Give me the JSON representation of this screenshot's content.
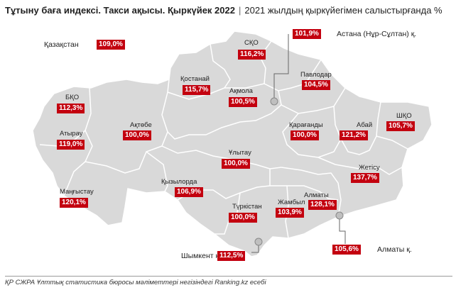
{
  "header": {
    "title": "Тұтыну баға индексі. Такси ақысы. Қыркүйек 2022",
    "subtitle": "2021 жылдың қыркүйегімен салыстырғанда %"
  },
  "national": {
    "label": "Қазақстан",
    "value": "109,0%"
  },
  "regions": [
    {
      "label": "СҚО",
      "value": "116,2%"
    },
    {
      "label": "Қостанай",
      "value": "115,7%"
    },
    {
      "label": "Ақмола",
      "value": "100,5%"
    },
    {
      "label": "Павлодар",
      "value": "104,5%"
    },
    {
      "label": "БҚО",
      "value": "112,3%"
    },
    {
      "label": "Ақтөбе",
      "value": "100,0%"
    },
    {
      "label": "Қарағанды",
      "value": "100,0%"
    },
    {
      "label": "Абай",
      "value": "121,2%"
    },
    {
      "label": "ШҚО",
      "value": "105,7%"
    },
    {
      "label": "Атырау",
      "value": "119,0%"
    },
    {
      "label": "Ұлытау",
      "value": "100,0%"
    },
    {
      "label": "Жетісу",
      "value": "137,7%"
    },
    {
      "label": "Маңғыстау",
      "value": "120,1%"
    },
    {
      "label": "Қызылорда",
      "value": "106,9%"
    },
    {
      "label": "Алматы",
      "value": "128,1%"
    },
    {
      "label": "Түркістан",
      "value": "100,0%"
    },
    {
      "label": "Жамбыл",
      "value": "103,9%"
    }
  ],
  "cities": [
    {
      "label": "Астана (Нұр-Сұлтан) қ.",
      "value": "101,9%"
    },
    {
      "label": "Шымкент қ.",
      "value": "112,5%"
    },
    {
      "label": "Алматы қ.",
      "value": "105,6%"
    }
  ],
  "footer": "ҚР СЖРА Ұлттық статистика бюросы мәліметтері негізіндегі Ranking.kz есебі",
  "colors": {
    "land": "#d9d9d9",
    "border": "#ffffff",
    "value_fill": "#c3000f",
    "city_marker": "#bfbfbf"
  }
}
